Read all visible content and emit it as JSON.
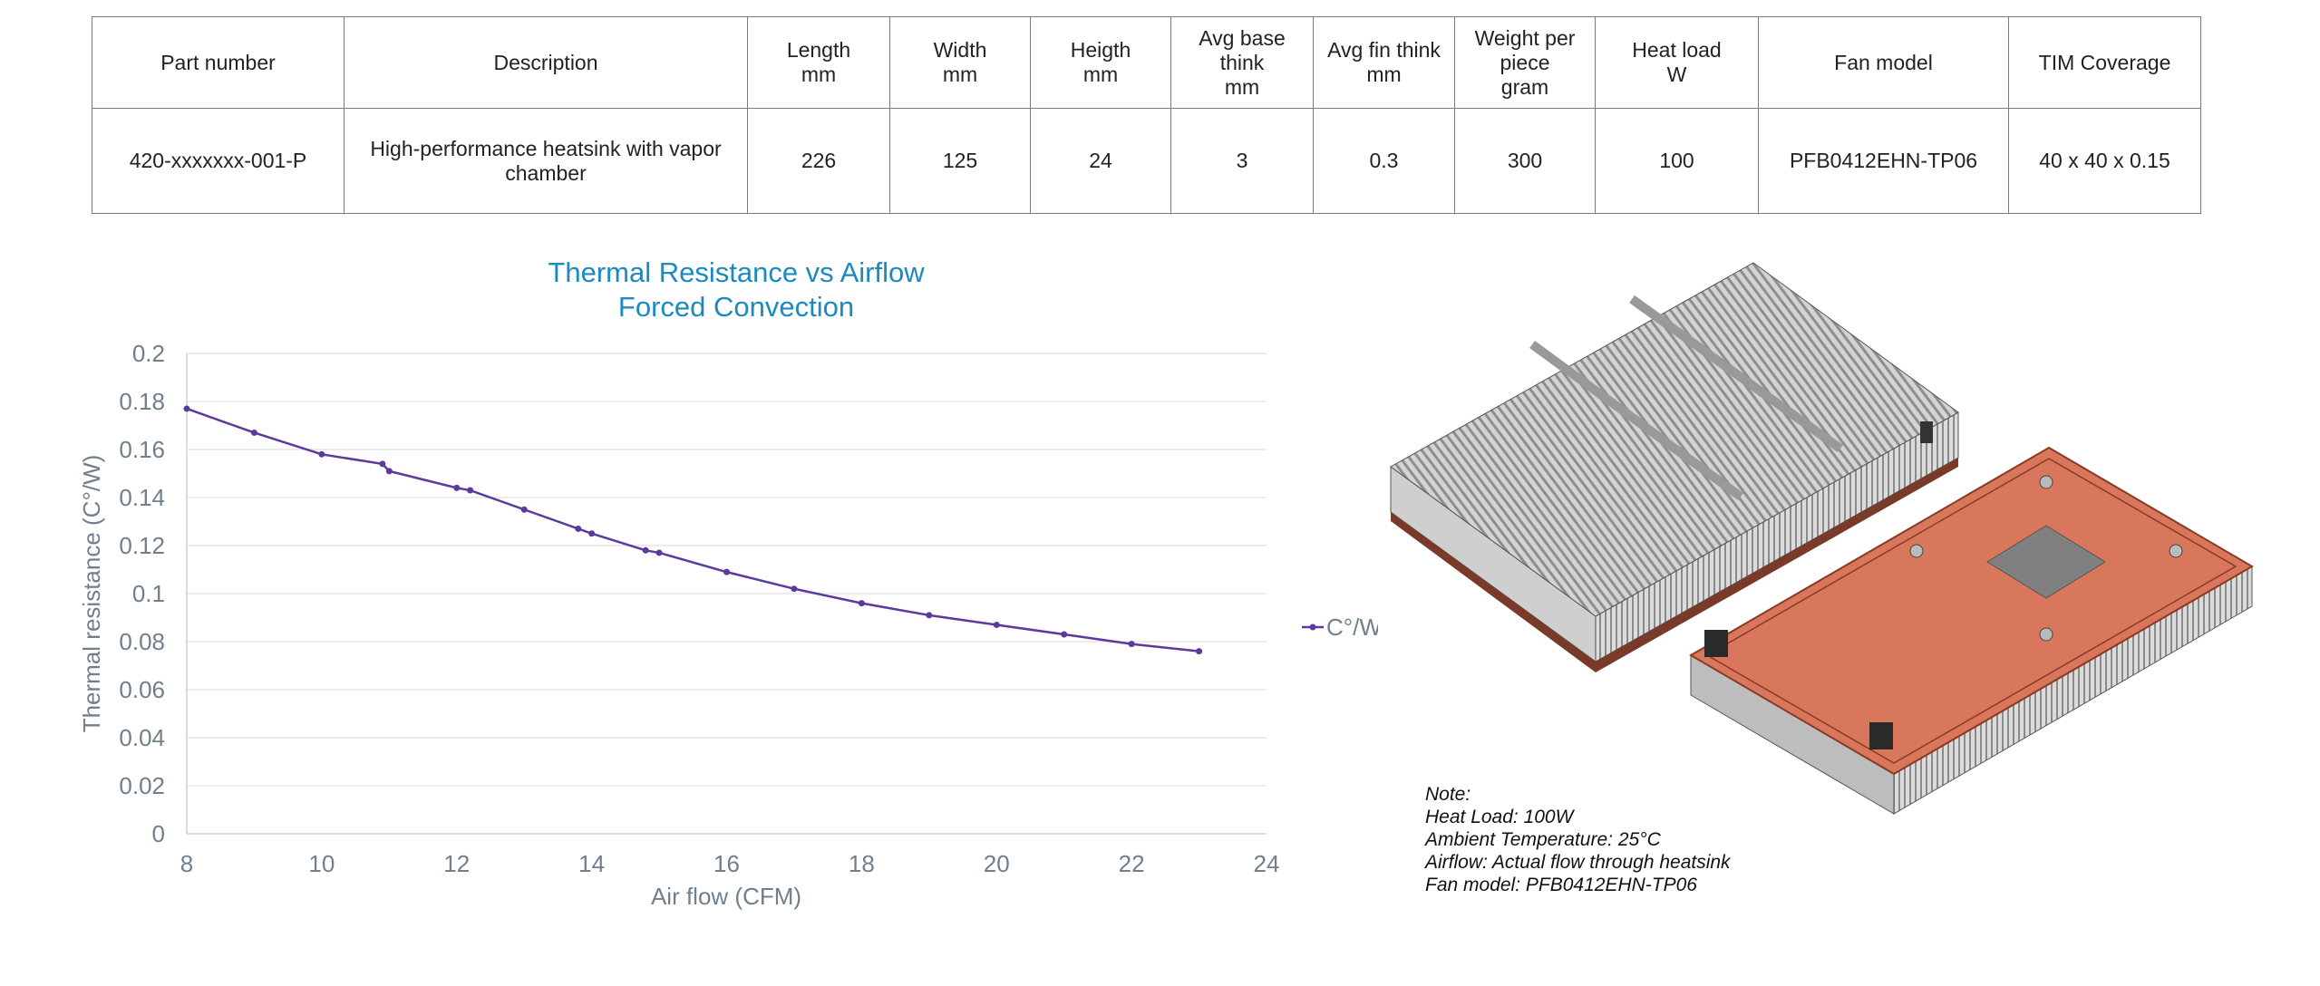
{
  "table": {
    "headers": [
      [
        "Part number"
      ],
      [
        "Description"
      ],
      [
        "Length",
        "mm"
      ],
      [
        "Width",
        "mm"
      ],
      [
        "Heigth",
        "mm"
      ],
      [
        "Avg base",
        "think",
        "mm"
      ],
      [
        "Avg fin think",
        "mm"
      ],
      [
        "Weight per",
        "piece",
        "gram"
      ],
      [
        "Heat load",
        "W"
      ],
      [
        "Fan model"
      ],
      [
        "TIM Coverage"
      ]
    ],
    "row": [
      "420-xxxxxxx-001-P",
      "High-performance heatsink with vapor chamber",
      "226",
      "125",
      "24",
      "3",
      "0.3",
      "300",
      "100",
      "PFB0412EHN-TP06",
      "40 x 40 x 0.15"
    ]
  },
  "chart_data": {
    "type": "line",
    "title": [
      "Thermal Resistance vs Airflow",
      "Forced Convection"
    ],
    "xlabel": "Air flow (CFM)",
    "ylabel": "Thermal resistance (C°/W)",
    "xlim": [
      8,
      24
    ],
    "ylim": [
      0,
      0.2
    ],
    "xticks": [
      "8",
      "10",
      "12",
      "14",
      "16",
      "18",
      "20",
      "22",
      "24"
    ],
    "yticks": [
      "0",
      "0.02",
      "0.04",
      "0.06",
      "0.08",
      "0.1",
      "0.12",
      "0.14",
      "0.16",
      "0.18",
      "0.2"
    ],
    "grid": true,
    "legend_position": "right",
    "series": [
      {
        "name": "C°/W",
        "color": "#5b3a9b",
        "x": [
          8,
          9,
          10,
          10.9,
          11,
          12,
          12.2,
          13,
          13.8,
          14,
          14.8,
          15,
          16,
          17,
          18,
          19,
          20,
          21,
          22,
          23
        ],
        "y": [
          0.177,
          0.167,
          0.158,
          0.154,
          0.151,
          0.144,
          0.143,
          0.135,
          0.127,
          0.125,
          0.118,
          0.117,
          0.109,
          0.102,
          0.096,
          0.091,
          0.087,
          0.083,
          0.079,
          0.076
        ]
      }
    ],
    "title_color": "#1a8ac0",
    "axis_text_color": "#6f7f8c"
  },
  "note": {
    "lines": [
      "Note:",
      "Heat Load: 100W",
      "Ambient Temperature: 25°C",
      "Airflow: Actual flow through heatsink",
      "Fan model: PFB0412EHN-TP06"
    ]
  }
}
